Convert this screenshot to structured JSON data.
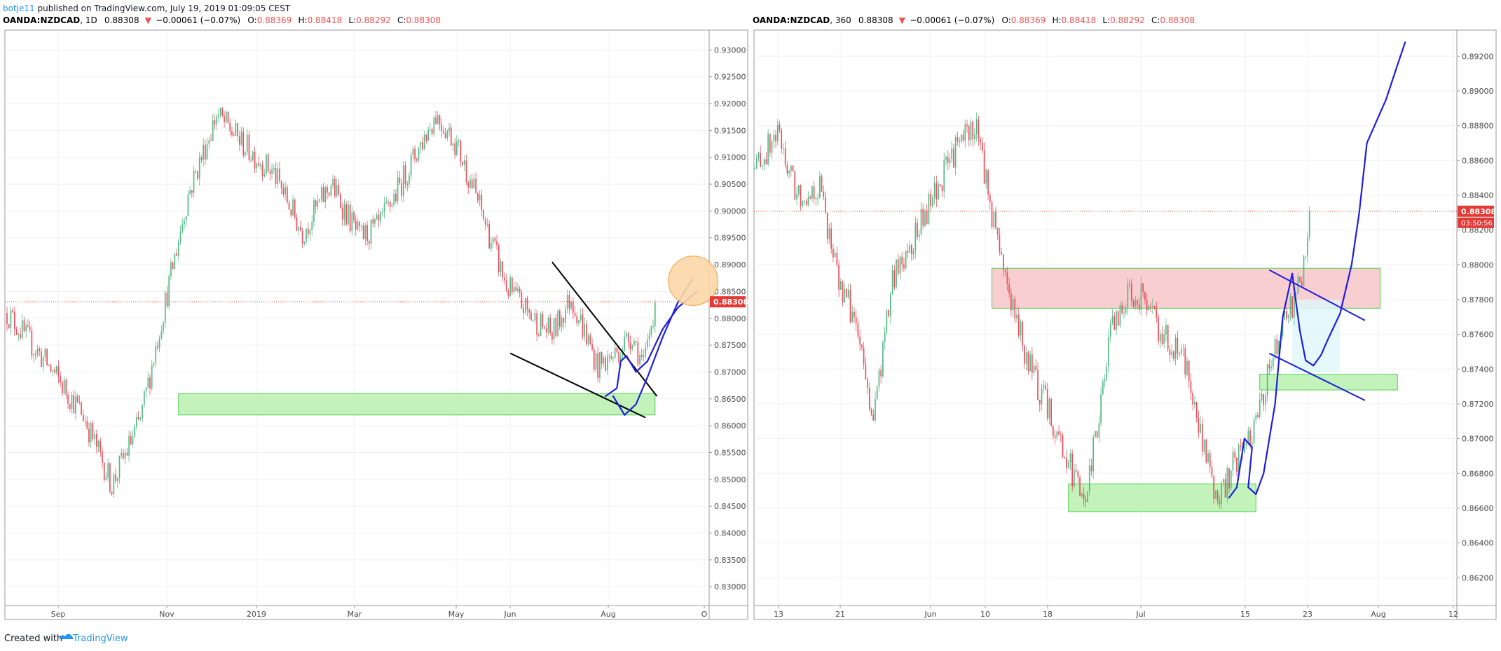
{
  "header": {
    "author": "botje11",
    "published_text": " published on TradingView.com, July 19, 2019 01:09:05 CEST"
  },
  "footer": {
    "created_with": "Created with",
    "brand": "TradingView"
  },
  "colors": {
    "up": "#26a69a",
    "down": "#ef5350",
    "candle_up": "#53b987",
    "candle_down": "#eb4d5c",
    "price_line": "#e53935",
    "accent_link": "#2196f3",
    "drawing_blue": "#1e1ee0",
    "zone_green": "#b9f2b0",
    "zone_red": "#f8c6c8"
  },
  "chart_data": [
    {
      "type": "candlestick",
      "symbol_line": {
        "symbol": "OANDA:NZDCAD",
        "interval": ", 1D",
        "last": "0.88308",
        "change": "−0.00061 (−0.07%)",
        "o_label": "O:",
        "o": "0.88369",
        "h_label": "H:",
        "h": "0.88418",
        "l_label": "L:",
        "l": "0.88292",
        "c_label": "C:",
        "c": "0.88308"
      },
      "price_tag": "0.88308",
      "y_ticks": [
        "0.93000",
        "0.92500",
        "0.92000",
        "0.91500",
        "0.91000",
        "0.90500",
        "0.90000",
        "0.89500",
        "0.89000",
        "0.88500",
        "0.88000",
        "0.87500",
        "0.87000",
        "0.86500",
        "0.86000",
        "0.85500",
        "0.85000",
        "0.84500",
        "0.84000",
        "0.83500",
        "0.83000"
      ],
      "x_ticks": [
        "Sep",
        "Nov",
        "2019",
        "Mar",
        "May",
        "Jun",
        "Aug",
        "O"
      ],
      "ylim": [
        0.8265,
        0.9337
      ],
      "last_price": 0.88308,
      "anchor_closes": [
        [
          0,
          0.881
        ],
        [
          20,
          0.872
        ],
        [
          40,
          0.862
        ],
        [
          55,
          0.849
        ],
        [
          70,
          0.861
        ],
        [
          80,
          0.878
        ],
        [
          95,
          0.903
        ],
        [
          110,
          0.918
        ],
        [
          125,
          0.912
        ],
        [
          140,
          0.907
        ],
        [
          155,
          0.896
        ],
        [
          170,
          0.905
        ],
        [
          185,
          0.895
        ],
        [
          195,
          0.897
        ],
        [
          215,
          0.911
        ],
        [
          225,
          0.918
        ],
        [
          235,
          0.913
        ],
        [
          245,
          0.904
        ],
        [
          262,
          0.886
        ],
        [
          276,
          0.88
        ],
        [
          286,
          0.877
        ],
        [
          296,
          0.884
        ],
        [
          310,
          0.871
        ],
        [
          318,
          0.873
        ],
        [
          328,
          0.877
        ],
        [
          334,
          0.871
        ],
        [
          340,
          0.883
        ]
      ],
      "zones": [
        {
          "name": "support-zone",
          "y1": 0.866,
          "y2": 0.862,
          "x1": 90,
          "x2": 340,
          "fill": "#b9f2b0"
        }
      ],
      "trendlines": [
        {
          "points": [
            [
              286,
              0.8905
            ],
            [
              341,
              0.8655
            ]
          ],
          "color": "#000000"
        },
        {
          "points": [
            [
              264,
              0.8735
            ],
            [
              335,
              0.8615
            ]
          ],
          "color": "#000000"
        }
      ],
      "curves": [
        {
          "points": [
            [
              318,
              0.8655
            ],
            [
              324,
              0.862
            ],
            [
              330,
              0.864
            ],
            [
              336,
              0.869
            ],
            [
              344,
              0.8765
            ],
            [
              352,
              0.883
            ],
            [
              360,
              0.8875
            ]
          ],
          "color": "#1e1ee0"
        },
        {
          "points": [
            [
              314,
              0.8655
            ],
            [
              320,
              0.867
            ],
            [
              322,
              0.872
            ],
            [
              325,
              0.873
            ],
            [
              330,
              0.87
            ],
            [
              336,
              0.872
            ],
            [
              344,
              0.878
            ],
            [
              352,
              0.882
            ],
            [
              362,
              0.885
            ]
          ],
          "color": "#1e1ee0"
        }
      ],
      "ellipse": {
        "cx": 360,
        "cy": 0.887,
        "rx": 13,
        "ry": 0.0046,
        "fill": "#fcd8a8",
        "stroke": "#f4a04a"
      }
    },
    {
      "type": "candlestick",
      "symbol_line": {
        "symbol": "OANDA:NZDCAD",
        "interval": ", 360",
        "last": "0.88308",
        "change": "−0.00061 (−0.07%)",
        "o_label": "O:",
        "o": "0.88369",
        "h_label": "H:",
        "h": "0.88418",
        "l_label": "L:",
        "l": "0.88292",
        "c_label": "C:",
        "c": "0.88308"
      },
      "price_tag": "0.88308",
      "countdown_tag": "03:50:56",
      "y_ticks": [
        "0.89200",
        "0.89000",
        "0.88800",
        "0.88600",
        "0.88400",
        "0.88200",
        "0.88000",
        "0.87800",
        "0.87600",
        "0.87400",
        "0.87200",
        "0.87000",
        "0.86800",
        "0.86600",
        "0.86400",
        "0.86200"
      ],
      "x_ticks": [
        "13",
        "21",
        "Jun",
        "10",
        "18",
        "Jul",
        "15",
        "23",
        "Aug",
        "12"
      ],
      "ylim": [
        0.8604,
        0.8935
      ],
      "last_price": 0.88308,
      "anchor_closes": [
        [
          0,
          0.8855
        ],
        [
          12,
          0.8875
        ],
        [
          22,
          0.884
        ],
        [
          34,
          0.8845
        ],
        [
          44,
          0.879
        ],
        [
          52,
          0.877
        ],
        [
          62,
          0.871
        ],
        [
          72,
          0.879
        ],
        [
          80,
          0.881
        ],
        [
          90,
          0.883
        ],
        [
          102,
          0.886
        ],
        [
          110,
          0.8875
        ],
        [
          116,
          0.888
        ],
        [
          124,
          0.883
        ],
        [
          128,
          0.881
        ],
        [
          136,
          0.877
        ],
        [
          144,
          0.874
        ],
        [
          156,
          0.871
        ],
        [
          166,
          0.868
        ],
        [
          172,
          0.866
        ],
        [
          178,
          0.87
        ],
        [
          186,
          0.876
        ],
        [
          196,
          0.8785
        ],
        [
          204,
          0.878
        ],
        [
          212,
          0.876
        ],
        [
          218,
          0.8755
        ],
        [
          226,
          0.874
        ],
        [
          234,
          0.87
        ],
        [
          242,
          0.866
        ],
        [
          250,
          0.8685
        ],
        [
          262,
          0.871
        ],
        [
          274,
          0.876
        ],
        [
          282,
          0.878
        ],
        [
          286,
          0.879
        ],
        [
          290,
          0.8832
        ]
      ],
      "zones": [
        {
          "name": "resistance-zone",
          "y1": 0.8798,
          "y2": 0.8775,
          "x1": 124,
          "x2": 327,
          "fill": "#f8c6c8"
        },
        {
          "name": "support-zone-right",
          "y1": 0.8737,
          "y2": 0.8728,
          "x1": 264,
          "x2": 336,
          "fill": "#b9f2b0"
        },
        {
          "name": "demand-zone",
          "y1": 0.8674,
          "y2": 0.8658,
          "x1": 164,
          "x2": 262,
          "fill": "#b9f2b0"
        }
      ],
      "trendlines": [
        {
          "points": [
            [
              269,
              0.8797
            ],
            [
              319,
              0.8768
            ]
          ],
          "color": "#1e1ee0"
        },
        {
          "points": [
            [
              269,
              0.8749
            ],
            [
              319,
              0.8722
            ]
          ],
          "color": "#1e1ee0"
        }
      ],
      "curves": [
        {
          "points": [
            [
              248,
              0.8666
            ],
            [
              252,
              0.8672
            ],
            [
              256,
              0.87
            ],
            [
              260,
              0.8695
            ],
            [
              258,
              0.8672
            ],
            [
              262,
              0.8668
            ],
            [
              266,
              0.868
            ],
            [
              272,
              0.872
            ],
            [
              276,
              0.877
            ],
            [
              281,
              0.8795
            ],
            [
              283,
              0.8778
            ],
            [
              285,
              0.8762
            ],
            [
              288,
              0.8745
            ],
            [
              292,
              0.8742
            ],
            [
              296,
              0.8748
            ],
            [
              300,
              0.8758
            ],
            [
              306,
              0.8772
            ],
            [
              312,
              0.88
            ],
            [
              316,
              0.883
            ],
            [
              320,
              0.887
            ],
            [
              324,
              0.888
            ],
            [
              330,
              0.8895
            ],
            [
              336,
              0.8915
            ],
            [
              340,
              0.8928
            ]
          ],
          "color": "#1e1ee0"
        }
      ]
    }
  ]
}
